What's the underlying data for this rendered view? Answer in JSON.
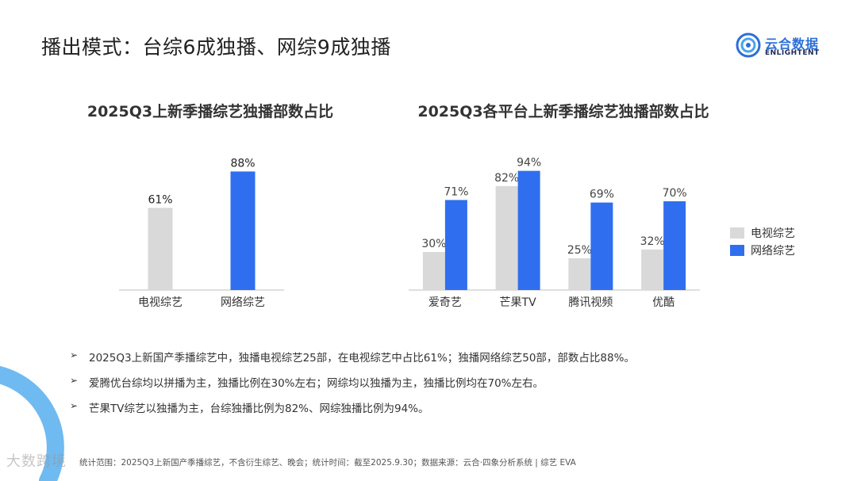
{
  "page": {
    "title": "播出模式：台综6成独播、网综9成独播"
  },
  "logo": {
    "cn_text": "云合数据",
    "en_text": "ENLIGHTENT",
    "brand_color": "#2c6fd8"
  },
  "colors": {
    "tv": "#d9d9d9",
    "web": "#2f6fef"
  },
  "legend": {
    "items": [
      {
        "label": "电视综艺",
        "color": "#d9d9d9"
      },
      {
        "label": "网络综艺",
        "color": "#2f6fef"
      }
    ]
  },
  "chart_data": [
    {
      "type": "bar",
      "title": "2025Q3上新季播综艺独播部数占比",
      "categories": [
        "电视综艺",
        "网络综艺"
      ],
      "values": [
        61,
        88
      ],
      "value_labels": [
        "61%",
        "88%"
      ],
      "colors": [
        "#d9d9d9",
        "#2f6fef"
      ],
      "ylim": [
        0,
        100
      ],
      "grid": false
    },
    {
      "type": "bar",
      "title": "2025Q3各平台上新季播综艺独播部数占比",
      "categories": [
        "爱奇艺",
        "芒果TV",
        "腾讯视频",
        "优酷"
      ],
      "series": [
        {
          "name": "电视综艺",
          "values": [
            30,
            82,
            25,
            32
          ],
          "value_labels": [
            "30%",
            "82%",
            "25%",
            "32%"
          ],
          "color": "#d9d9d9"
        },
        {
          "name": "网络综艺",
          "values": [
            71,
            94,
            69,
            70
          ],
          "value_labels": [
            "71%",
            "94%",
            "69%",
            "70%"
          ],
          "color": "#2f6fef"
        }
      ],
      "ylim": [
        0,
        100
      ],
      "grid": false,
      "legend_position": "right"
    }
  ],
  "bullets": [
    "2025Q3上新国产季播综艺中，独播电视综艺25部，在电视综艺中占比61%；独播网络综艺50部，部数占比88%。",
    "爱腾优台综均以拼播为主，独播比例在30%左右；网综均以独播为主，独播比例均在70%左右。",
    "芒果TV综艺以独播为主，台综独播比例为82%、网综独播比例为94%。"
  ],
  "bullet_marker": "➢",
  "footnote": "统计范围：2025Q3上新国产季播综艺，不含衍生综艺、晚会；统计时间：截至2025.9.30；数据来源：云合·四象分析系统 | 综艺 EVA",
  "watermark": "大数跨境"
}
